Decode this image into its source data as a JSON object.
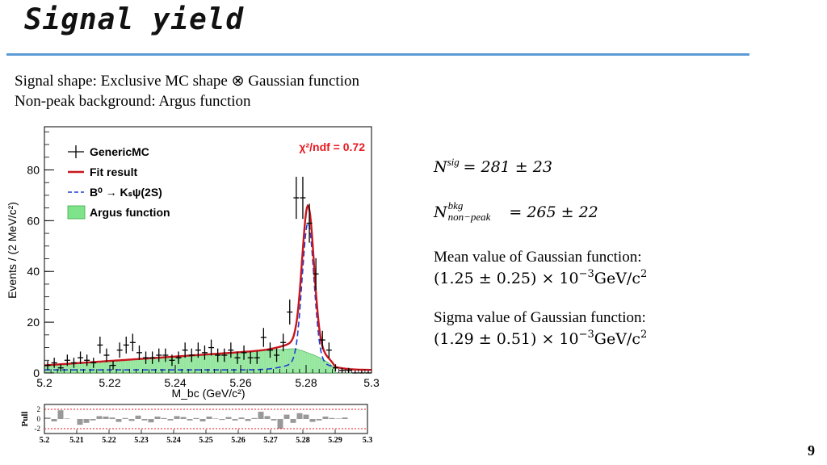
{
  "slide": {
    "title": "Signal yield",
    "intro_line1": "Signal shape: Exclusive MC shape ⊗ Gaussian function",
    "intro_line2": "Non-peak background: Argus function",
    "page_number": "9"
  },
  "results": {
    "nsig_symbol": "N",
    "nsig_sup": "sig",
    "nsig_value": "= 281 ± 23",
    "nbkg_symbol": "N",
    "nbkg_sup": "bkg",
    "nbkg_sub": "non−peak",
    "nbkg_value": "= 265 ± 22",
    "mean_label": "Mean value of Gaussian function:",
    "mean_value": "(1.25 ± 0.25) × 10",
    "mean_exp": "−3",
    "mean_unit": "GeV/c",
    "mean_unit_exp": "2",
    "sigma_label": "Sigma value of Gaussian function:",
    "sigma_value": "(1.29 ± 0.51) × 10",
    "sigma_exp": "−3",
    "sigma_unit": "GeV/c",
    "sigma_unit_exp": "2"
  },
  "chart_data": [
    {
      "type": "histogram-fit",
      "xlabel": "M_bc (GeV/c²)",
      "ylabel": "Events / (2 MeV/c²)",
      "xlim": [
        5.2,
        5.3
      ],
      "ylim": [
        0,
        97
      ],
      "xticks": [
        "5.2",
        "5.22",
        "5.24",
        "5.26",
        "5.28",
        "5.3"
      ],
      "yticks": [
        "0",
        "20",
        "40",
        "60",
        "80"
      ],
      "chi2_label": "χ²/ndf = 0.72",
      "chi2_color": "#e8191f",
      "legend": [
        {
          "name": "GenericMC",
          "style": "points",
          "color": "#000000"
        },
        {
          "name": "Fit result",
          "style": "line",
          "color": "#c8161d"
        },
        {
          "name": "B⁰ → Kₛψ(2S)",
          "style": "dashed",
          "color": "#1f3fd1"
        },
        {
          "name": "Argus function",
          "style": "fill",
          "color": "#7ee38a"
        }
      ],
      "data_x": [
        5.201,
        5.203,
        5.205,
        5.207,
        5.209,
        5.211,
        5.213,
        5.215,
        5.217,
        5.219,
        5.221,
        5.223,
        5.225,
        5.227,
        5.229,
        5.231,
        5.233,
        5.235,
        5.237,
        5.239,
        5.241,
        5.243,
        5.245,
        5.247,
        5.249,
        5.251,
        5.253,
        5.255,
        5.257,
        5.259,
        5.261,
        5.263,
        5.265,
        5.267,
        5.269,
        5.271,
        5.273,
        5.275,
        5.277,
        5.279,
        5.281,
        5.283,
        5.285,
        5.287,
        5.289,
        5.291,
        5.293,
        5.295,
        5.297,
        5.299
      ],
      "data_y": [
        3,
        4,
        2,
        5,
        4,
        6,
        5,
        4,
        11,
        7,
        3,
        9,
        11,
        12,
        8,
        6,
        6,
        7,
        7,
        5,
        6,
        9,
        7,
        9,
        8,
        10,
        7,
        7,
        9,
        6,
        8,
        6,
        6,
        14,
        9,
        7,
        12,
        24,
        69,
        69,
        59,
        39,
        13,
        9,
        2,
        1,
        1,
        0,
        0,
        0
      ],
      "argus_A": 9.5,
      "argus_cutoff": 5.289,
      "gauss_peak": 55,
      "gauss_mean": 5.2806,
      "gauss_sigma": 0.0018,
      "gauss_tail_amp": 3,
      "gauss_tail_sigma": 0.006,
      "fit_color": "#c8161d",
      "signal_color": "#1f3fd1",
      "argus_color": "#7ee38a"
    },
    {
      "type": "bar",
      "ylabel": "Pull",
      "xlim": [
        5.2,
        5.3
      ],
      "ylim": [
        -3,
        3
      ],
      "yticks": [
        "2",
        "0",
        "-2"
      ],
      "xticks": [
        "5.2",
        "5.21",
        "5.22",
        "5.23",
        "5.24",
        "5.25",
        "5.26",
        "5.27",
        "5.28",
        "5.29",
        "5.3"
      ],
      "pulls": [
        0.3,
        -0.5,
        1.8,
        0.1,
        0.0,
        -1.2,
        -0.8,
        -0.3,
        0.6,
        0.5,
        0.3,
        -0.6,
        0.2,
        -0.4,
        0.7,
        -0.3,
        -0.7,
        0.5,
        0.2,
        -0.3,
        0.6,
        0.4,
        -0.3,
        0.2,
        -0.5,
        0.5,
        0.1,
        -0.2,
        0.4,
        -0.3,
        0.3,
        -0.4,
        0.2,
        1.5,
        0.6,
        -0.3,
        -2.0,
        0.9,
        -0.8,
        1.2,
        0.9,
        -0.6,
        -0.3,
        0.5,
        0.2,
        0.1,
        0.3,
        0.0,
        0.0,
        0.0
      ],
      "ref_lines": [
        -2,
        2
      ],
      "ref_color": "#e8191f"
    }
  ]
}
